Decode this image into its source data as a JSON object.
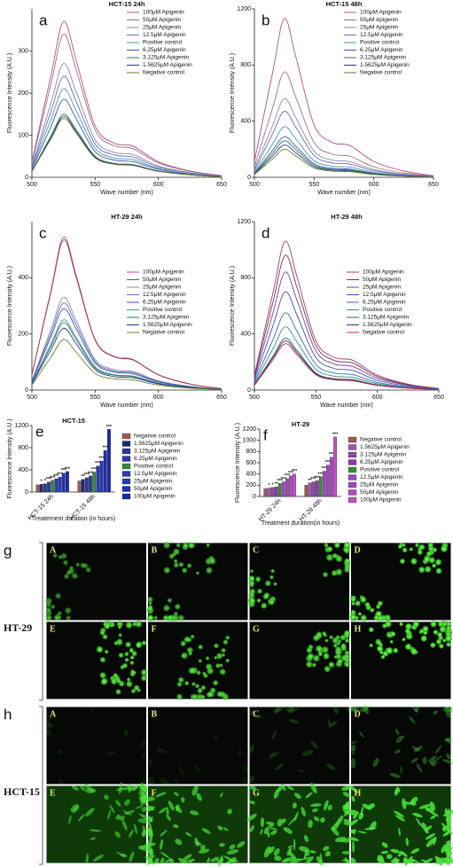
{
  "chart_data": [
    {
      "type": "line",
      "panel": "a",
      "title": "HCT-15 24h",
      "xlabel": "Wave number (nm)",
      "ylabel": "Fluorescence Intensity (A.U.)",
      "x": [
        500,
        515,
        525,
        535,
        550,
        565,
        580,
        600,
        625,
        650
      ],
      "xlim": [
        500,
        650
      ],
      "xticks": [
        500,
        550,
        600,
        650
      ],
      "ylim": [
        0,
        400
      ],
      "yticks": [
        0,
        100,
        200,
        300
      ],
      "legend": "upper right",
      "series": [
        {
          "name": "100μM Apigenin",
          "color": "#b0508a",
          "values": [
            37,
            241,
            370,
            278,
            122,
            81,
            74,
            37,
            15,
            4
          ]
        },
        {
          "name": "50μM Apigenin",
          "color": "#9a7088",
          "values": [
            34,
            221,
            340,
            255,
            112,
            75,
            68,
            34,
            14,
            3
          ]
        },
        {
          "name": "25μM Apigenin",
          "color": "#8a8aa8",
          "values": [
            27,
            176,
            270,
            203,
            89,
            59,
            54,
            27,
            11,
            3
          ]
        },
        {
          "name": "12.5μM Apigenin",
          "color": "#6a6ac0",
          "values": [
            24,
            156,
            240,
            180,
            79,
            53,
            48,
            24,
            10,
            2
          ]
        },
        {
          "name": "Positive control",
          "color": "#4a9aa0",
          "values": [
            21,
            137,
            210,
            158,
            69,
            46,
            42,
            21,
            8,
            2
          ]
        },
        {
          "name": "6.25μM Apigenin",
          "color": "#3a5ab0",
          "values": [
            19,
            120,
            185,
            139,
            61,
            41,
            37,
            19,
            7,
            2
          ]
        },
        {
          "name": "3.125μM Apigenin",
          "color": "#2a7a60",
          "values": [
            15,
            98,
            150,
            113,
            50,
            33,
            30,
            15,
            6,
            2
          ]
        },
        {
          "name": "1.5625μM Apigenin",
          "color": "#2a3a80",
          "values": [
            15,
            94,
            145,
            109,
            48,
            32,
            29,
            15,
            6,
            1
          ]
        },
        {
          "name": "Negative control",
          "color": "#6a7a30",
          "values": [
            14,
            91,
            140,
            105,
            46,
            31,
            28,
            14,
            6,
            1
          ]
        }
      ]
    },
    {
      "type": "line",
      "panel": "b",
      "title": "HCT-15 48h",
      "xlabel": "Wave number (nm)",
      "ylabel": "Fluorescence Intensity (A.U.)",
      "x": [
        500,
        515,
        525,
        535,
        550,
        565,
        580,
        600,
        625,
        650
      ],
      "xlim": [
        500,
        650
      ],
      "xticks": [
        500,
        550,
        600,
        650
      ],
      "ylim": [
        0,
        1200
      ],
      "yticks": [
        0,
        400,
        800,
        1200
      ],
      "legend": "upper right",
      "series": [
        {
          "name": "100μM Apigenin",
          "color": "#b0508a",
          "values": [
            113,
            735,
            1130,
            848,
            373,
            249,
            226,
            113,
            45,
            11
          ]
        },
        {
          "name": "50μM Apigenin",
          "color": "#9a7088",
          "values": [
            75,
            488,
            750,
            563,
            248,
            165,
            150,
            75,
            30,
            8
          ]
        },
        {
          "name": "25μM Apigenin",
          "color": "#8a8aa8",
          "values": [
            56,
            364,
            560,
            420,
            185,
            123,
            112,
            56,
            22,
            6
          ]
        },
        {
          "name": "12.5μM Apigenin",
          "color": "#6a6ac0",
          "values": [
            47,
            306,
            470,
            353,
            155,
            103,
            94,
            47,
            19,
            5
          ]
        },
        {
          "name": "Positive control",
          "color": "#4a9aa0",
          "values": [
            36,
            234,
            360,
            270,
            119,
            79,
            72,
            36,
            14,
            4
          ]
        },
        {
          "name": "6.25μM Apigenin",
          "color": "#3a5ab0",
          "values": [
            29,
            189,
            290,
            218,
            96,
            64,
            58,
            29,
            12,
            3
          ]
        },
        {
          "name": "3.125μM Apigenin",
          "color": "#2a7a60",
          "values": [
            26,
            169,
            260,
            195,
            86,
            57,
            52,
            26,
            10,
            3
          ]
        },
        {
          "name": "1.5625μM Apigenin",
          "color": "#2a3a80",
          "values": [
            23,
            150,
            230,
            173,
            76,
            51,
            46,
            23,
            9,
            2
          ]
        },
        {
          "name": "Negative control",
          "color": "#6a7a30",
          "values": [
            20,
            130,
            200,
            150,
            66,
            44,
            40,
            20,
            8,
            2
          ]
        }
      ]
    },
    {
      "type": "line",
      "panel": "c",
      "title": "HT-29 24h",
      "xlabel": "Wave number (nm)",
      "ylabel": "Fluorescence Intensity (A.U.)",
      "x": [
        500,
        515,
        525,
        535,
        550,
        565,
        580,
        600,
        625,
        650
      ],
      "xlim": [
        500,
        650
      ],
      "xticks": [
        500,
        550,
        600,
        650
      ],
      "ylim": [
        0,
        600
      ],
      "yticks": [
        0,
        200,
        400
      ],
      "legend": "center right",
      "series": [
        {
          "name": "100μM Apigenin",
          "color": "#b0508a",
          "values": [
            55,
            354,
            545,
            409,
            180,
            120,
            109,
            55,
            22,
            5
          ]
        },
        {
          "name": "50μM Apigenin",
          "color": "#9a4060",
          "values": [
            54,
            348,
            535,
            401,
            177,
            118,
            107,
            54,
            21,
            5
          ]
        },
        {
          "name": "25μM Apigenin",
          "color": "#8a8aa8",
          "values": [
            33,
            215,
            330,
            248,
            109,
            73,
            66,
            33,
            13,
            3
          ]
        },
        {
          "name": "12.5μM Apigenin",
          "color": "#6a6ac0",
          "values": [
            31,
            202,
            310,
            233,
            102,
            68,
            62,
            31,
            12,
            3
          ]
        },
        {
          "name": "6.25μM Apigenin",
          "color": "#3a5ab0",
          "values": [
            29,
            189,
            290,
            218,
            96,
            64,
            58,
            29,
            12,
            3
          ]
        },
        {
          "name": "Positive control",
          "color": "#4a9aa0",
          "values": [
            25,
            163,
            250,
            188,
            83,
            55,
            50,
            25,
            10,
            3
          ]
        },
        {
          "name": "3.125μM Apigenin",
          "color": "#2a7a60",
          "values": [
            24,
            156,
            240,
            180,
            79,
            53,
            48,
            24,
            10,
            2
          ]
        },
        {
          "name": "1.5625μM Apigenin",
          "color": "#2a3a80",
          "values": [
            22,
            143,
            220,
            165,
            73,
            48,
            44,
            22,
            9,
            2
          ]
        },
        {
          "name": "Negative control",
          "color": "#6a7a30",
          "values": [
            18,
            117,
            180,
            135,
            59,
            40,
            36,
            18,
            7,
            2
          ]
        }
      ]
    },
    {
      "type": "line",
      "panel": "d",
      "title": "HT-29 48h",
      "xlabel": "Wave number (nm)",
      "ylabel": "Fluorescence Intensity (A.U.)",
      "x": [
        500,
        515,
        525,
        535,
        550,
        565,
        580,
        600,
        625,
        650
      ],
      "xlim": [
        500,
        650
      ],
      "xticks": [
        500,
        550,
        600,
        650
      ],
      "ylim": [
        0,
        1200
      ],
      "yticks": [
        0,
        400,
        800,
        1200
      ],
      "legend": "center right",
      "series": [
        {
          "name": "100μM Apigenin",
          "color": "#a04070",
          "values": [
            106,
            689,
            1060,
            795,
            350,
            233,
            212,
            106,
            42,
            11
          ]
        },
        {
          "name": "50μM Apigenin",
          "color": "#7a3050",
          "values": [
            96,
            624,
            960,
            720,
            317,
            211,
            192,
            96,
            38,
            10
          ]
        },
        {
          "name": "25μM Apigenin",
          "color": "#6a4a9a",
          "values": [
            84,
            546,
            840,
            630,
            277,
            185,
            168,
            84,
            34,
            8
          ]
        },
        {
          "name": "12.5μM Apigenin",
          "color": "#4a4ab0",
          "values": [
            70,
            455,
            700,
            525,
            231,
            154,
            140,
            70,
            28,
            7
          ]
        },
        {
          "name": "6.25μM Apigenin",
          "color": "#3a6ab0",
          "values": [
            55,
            358,
            550,
            413,
            182,
            121,
            110,
            55,
            22,
            6
          ]
        },
        {
          "name": "Positive control",
          "color": "#3a8a90",
          "values": [
            45,
            293,
            450,
            338,
            149,
            99,
            90,
            45,
            18,
            5
          ]
        },
        {
          "name": "3.125μM Apigenin",
          "color": "#4a5a50",
          "values": [
            37,
            241,
            370,
            278,
            122,
            81,
            74,
            37,
            15,
            4
          ]
        },
        {
          "name": "1.5625μM Apigenin",
          "color": "#2a3a80",
          "values": [
            35,
            228,
            350,
            263,
            116,
            77,
            70,
            35,
            14,
            4
          ]
        },
        {
          "name": "Negative control",
          "color": "#c03040",
          "values": [
            33,
            215,
            330,
            248,
            109,
            73,
            66,
            33,
            13,
            3
          ]
        }
      ]
    },
    {
      "type": "bar",
      "panel": "e",
      "title": "HCT-15",
      "xlabel": "Treatement duration (in hours)",
      "ylabel": "Fluorescence Intensity (A.U.)",
      "categories": [
        "HCT-15 24h",
        "HCT-15 48h"
      ],
      "ylim": [
        0,
        1200
      ],
      "yticks": [
        0,
        400,
        800,
        1200
      ],
      "legend": "right",
      "series": [
        {
          "name": "Negative control",
          "color": "#a05a50",
          "values": [
            130,
            200
          ]
        },
        {
          "name": "1.5625μM Apigenin",
          "color": "#1a2a70",
          "values": [
            140,
            230
          ],
          "significance": [
            "*",
            "**"
          ]
        },
        {
          "name": "3.125μM Apigenin",
          "color": "#2a3a90",
          "values": [
            150,
            260
          ],
          "significance": [
            "*",
            "***"
          ]
        },
        {
          "name": "6.25μM Apigenin",
          "color": "#2a3aa0",
          "values": [
            180,
            290
          ],
          "significance": [
            "***",
            "***"
          ]
        },
        {
          "name": "Positive control",
          "color": "#3a8a3a",
          "values": [
            210,
            360
          ],
          "significance": [
            "***",
            "***"
          ]
        },
        {
          "name": "12.5μM Apigenin",
          "color": "#2a3ab0",
          "values": [
            240,
            470
          ],
          "significance": [
            "***",
            "***"
          ]
        },
        {
          "name": "25μM Apigenin",
          "color": "#2a3ab8",
          "values": [
            270,
            560
          ],
          "significance": [
            "***",
            "***"
          ]
        },
        {
          "name": "50μM Apigenin",
          "color": "#2030b0",
          "values": [
            340,
            750
          ],
          "significance": [
            "***",
            "***"
          ]
        },
        {
          "name": "100μM Apigenin",
          "color": "#1a28a8",
          "values": [
            370,
            1130
          ],
          "significance": [
            "***",
            "***"
          ]
        }
      ]
    },
    {
      "type": "bar",
      "panel": "f",
      "title": "HT-29",
      "xlabel": "Treatment duration(in hours)",
      "ylabel": "Fluorescence Intensity (A.U.)",
      "categories": [
        "HT-29 24h",
        "HT-29 48h"
      ],
      "ylim": [
        0,
        1200
      ],
      "yticks": [
        0,
        200,
        400,
        600,
        800,
        1000,
        1200
      ],
      "legend": "right",
      "series": [
        {
          "name": "Negative control",
          "color": "#a05a50",
          "values": [
            140,
            200
          ]
        },
        {
          "name": "1.5625μM Apigenin",
          "color": "#9a5ab0",
          "values": [
            150,
            240
          ],
          "significance": [
            "*",
            "**"
          ]
        },
        {
          "name": "3.125μM Apigenin",
          "color": "#8a4aa8",
          "values": [
            160,
            260
          ],
          "significance": [
            "*",
            "***"
          ]
        },
        {
          "name": "6.25μM Apigenin",
          "color": "#8a3aa8",
          "values": [
            170,
            280
          ],
          "significance": [
            "**",
            "***"
          ]
        },
        {
          "name": "Positive control",
          "color": "#3a8a3a",
          "values": [
            230,
            350
          ],
          "significance": [
            "***",
            "***"
          ]
        },
        {
          "name": "12.5μM Apigenin",
          "color": "#9a4ac0",
          "values": [
            260,
            450
          ],
          "significance": [
            "***",
            "***"
          ]
        },
        {
          "name": "25μM Apigenin",
          "color": "#a04ab8",
          "values": [
            320,
            560
          ],
          "significance": [
            "***",
            "***"
          ]
        },
        {
          "name": "50μM Apigenin",
          "color": "#b04ac0",
          "values": [
            370,
            700
          ],
          "significance": [
            "***",
            "***"
          ]
        },
        {
          "name": "100μM Apigenin",
          "color": "#c050c8",
          "values": [
            400,
            1060
          ],
          "significance": [
            "***",
            "***"
          ]
        }
      ]
    }
  ],
  "micrographs": [
    {
      "panel": "g",
      "label": "HT-29",
      "tiles": [
        "A",
        "B",
        "C",
        "D",
        "E",
        "F",
        "G",
        "H"
      ]
    },
    {
      "panel": "h",
      "label": "HCT-15",
      "tiles": [
        "A",
        "B",
        "C",
        "D",
        "E",
        "F",
        "G",
        "H"
      ]
    }
  ]
}
